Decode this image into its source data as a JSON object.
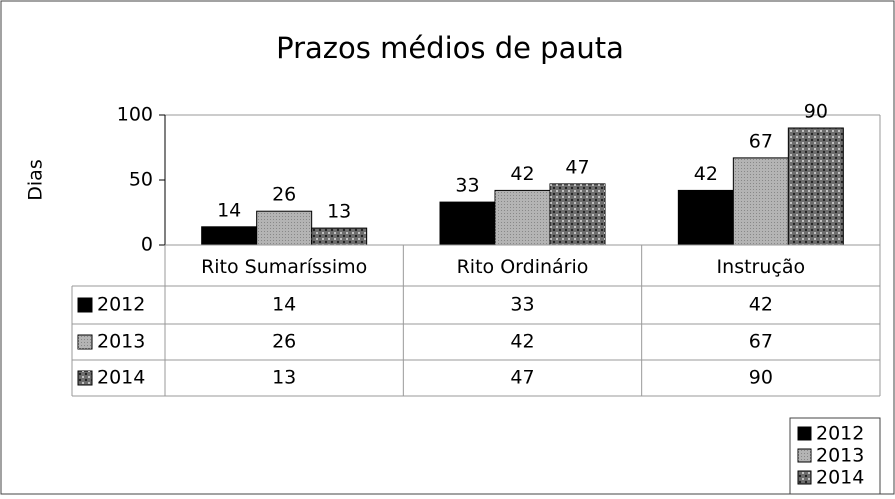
{
  "chart_data": {
    "type": "bar",
    "title": "Prazos médios de pauta",
    "y_label": "Dias",
    "categories": [
      "Rito Sumaríssimo",
      "Rito Ordinário",
      "Instrução"
    ],
    "series": [
      {
        "name": "2012",
        "color": "#000000",
        "values": [
          14,
          33,
          42
        ]
      },
      {
        "name": "2013",
        "color": "#b4b4b4",
        "values": [
          26,
          42,
          67
        ]
      },
      {
        "name": "2014",
        "color": "#6e6e6e",
        "values": [
          13,
          47,
          90
        ]
      }
    ],
    "ylim": [
      0,
      100
    ],
    "yticks": [
      0,
      50,
      100
    ],
    "grid": false,
    "legend": "bottom-right",
    "data_table": true
  }
}
